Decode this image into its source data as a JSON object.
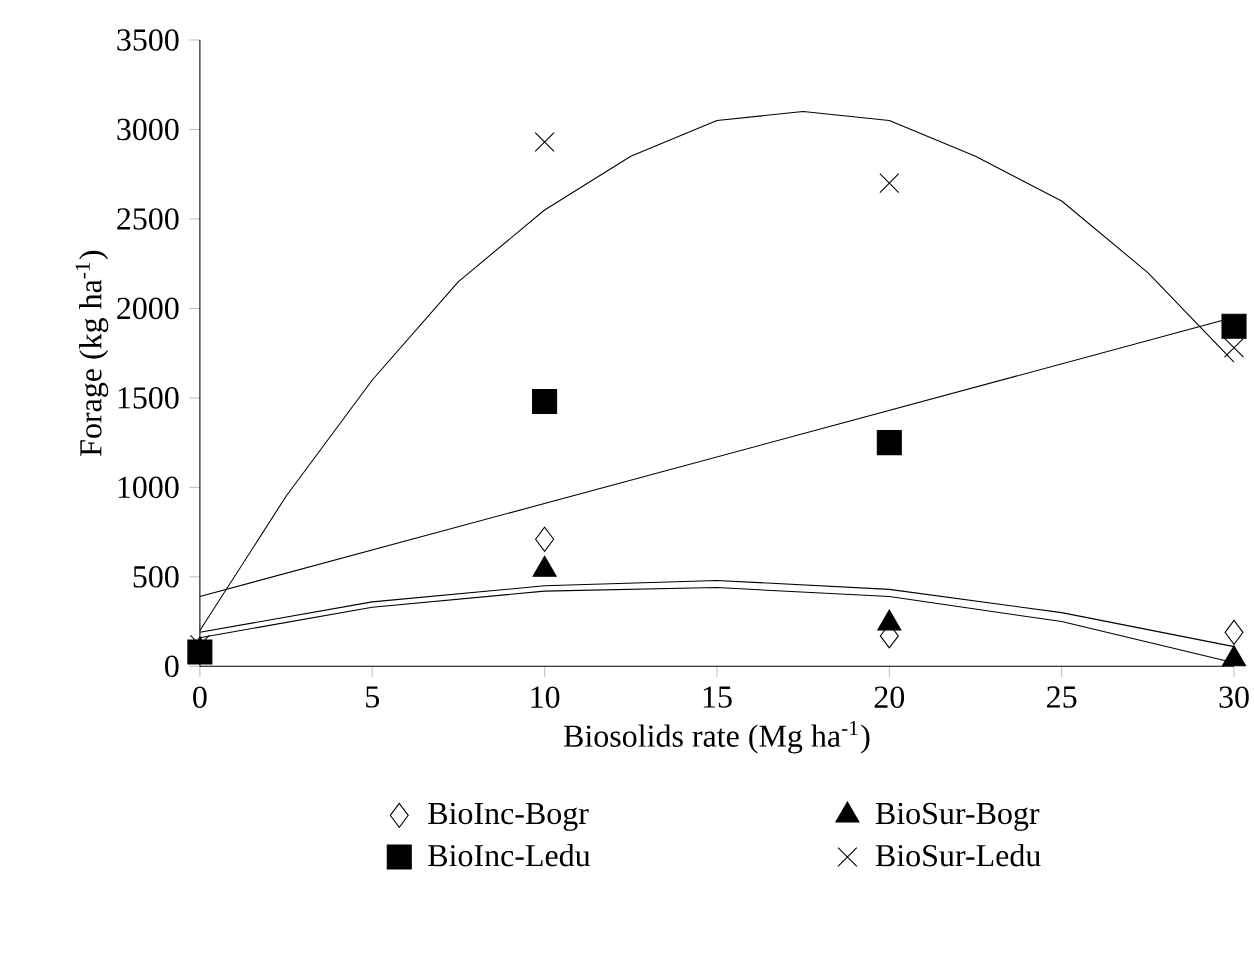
{
  "chart_data": {
    "type": "scatter",
    "xlabel": "Biosolids rate (Mg ha$^{-1}$)",
    "ylabel": "Forage (kg ha$^{-1}$)",
    "xlim": [
      0,
      30
    ],
    "xticks": [
      0,
      5,
      10,
      15,
      20,
      25,
      30
    ],
    "ylim": [
      0,
      3500
    ],
    "yticks": [
      0,
      500,
      1000,
      1500,
      2000,
      2500,
      3000,
      3500
    ],
    "grid": false,
    "legend": "bottom",
    "series": [
      {
        "name": "BioInc-Bogr",
        "color": "#000000",
        "marker": "diamond",
        "x": [
          10,
          20,
          30
        ],
        "values": [
          710,
          170,
          190
        ]
      },
      {
        "name": "BioSur-Bogr",
        "color": "#000000",
        "marker": "triangle",
        "x": [
          0,
          10,
          20,
          30
        ],
        "values": [
          90,
          540,
          240,
          40
        ]
      },
      {
        "name": "BioInc-Ledu",
        "color": "#000000",
        "marker": "square",
        "x": [
          0,
          10,
          20,
          30
        ],
        "values": [
          80,
          1480,
          1250,
          1900
        ]
      },
      {
        "name": "BioSur-Ledu",
        "color": "#000000",
        "marker": "cross",
        "x": [
          0,
          10,
          20,
          30
        ],
        "values": [
          120,
          2930,
          2700,
          1780
        ]
      },
      {
        "type": "line",
        "color": "#000000",
        "marker": "none",
        "x": [
          0,
          30
        ],
        "values": [
          390,
          1950
        ]
      },
      {
        "type": "line",
        "color": "#000000",
        "marker": "none",
        "x": [
          0,
          2.5,
          5,
          7.5,
          10,
          12.5,
          15,
          17.5,
          20,
          22.5,
          25,
          27.5,
          30
        ],
        "values": [
          200,
          950,
          1600,
          2150,
          2550,
          2850,
          3050,
          3100,
          3050,
          2850,
          2600,
          2200,
          1700
        ]
      },
      {
        "type": "line",
        "color": "#000000",
        "marker": "none",
        "x": [
          0,
          5,
          10,
          15,
          20,
          25,
          30
        ],
        "values": [
          190,
          360,
          450,
          480,
          430,
          300,
          110
        ]
      },
      {
        "type": "line",
        "color": "#000000",
        "marker": "none",
        "x": [
          0,
          5,
          10,
          15,
          20,
          25,
          30
        ],
        "values": [
          160,
          330,
          420,
          440,
          390,
          250,
          20
        ]
      }
    ]
  }
}
